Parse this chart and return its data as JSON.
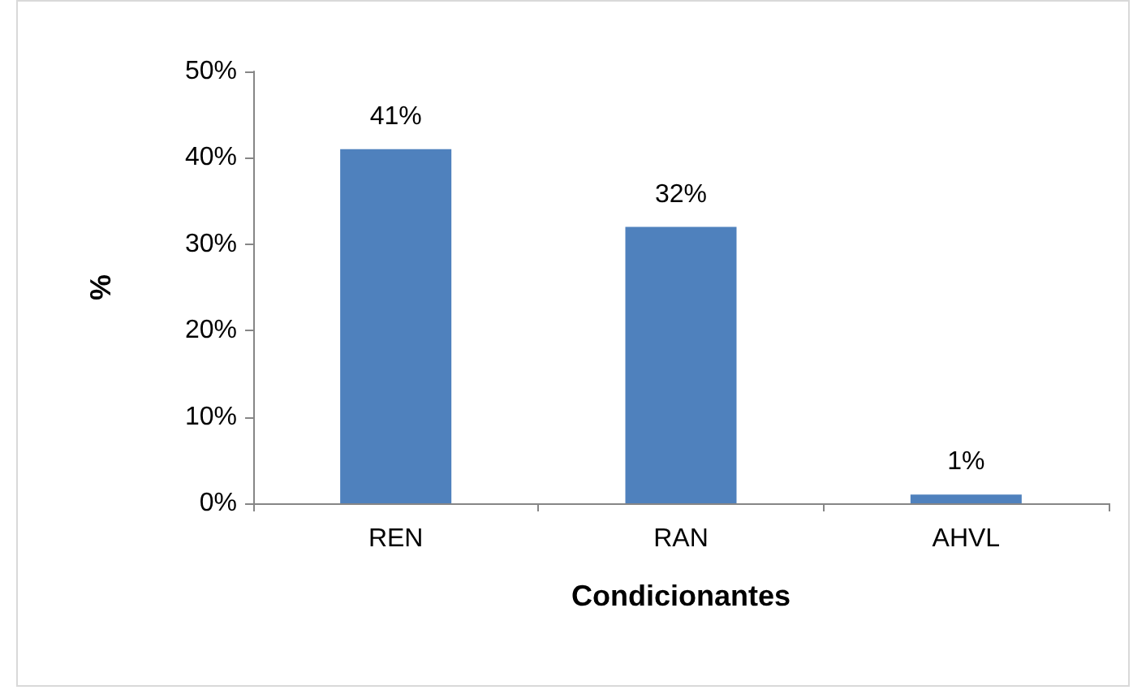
{
  "chart_data": {
    "type": "bar",
    "xlabel": "Condicionantes",
    "ylabel": "%",
    "categories": [
      "REN",
      "RAN",
      "AHVL"
    ],
    "values": [
      41,
      32,
      1
    ],
    "value_labels": [
      "41%",
      "32%",
      "1%"
    ],
    "color": "#4f81bd",
    "ylim": [
      0,
      50
    ],
    "yticks": [
      {
        "value": 0,
        "label": "0%"
      },
      {
        "value": 10,
        "label": "10%"
      },
      {
        "value": 20,
        "label": "20%"
      },
      {
        "value": 30,
        "label": "30%"
      },
      {
        "value": 40,
        "label": "40%"
      },
      {
        "value": 50,
        "label": "50%"
      }
    ],
    "grid": false
  }
}
